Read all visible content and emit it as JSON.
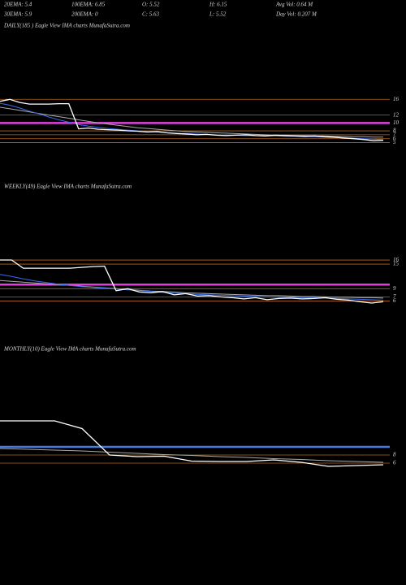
{
  "header": {
    "rows": [
      [
        "20EMA: 5.4",
        "100EMA: 6.85",
        "O: 5.52",
        "H: 6.15",
        "Avg Vol: 0.64  M"
      ],
      [
        "30EMA: 5.9",
        "200EMA: 0",
        "C: 5.63",
        "L: 5.52",
        "Day Vol: 0.207 M"
      ]
    ]
  },
  "chart_data": [
    {
      "type": "line",
      "title": "DAILY(185 ) Eagle  View  IMA charts MunafaSutra.com",
      "ylim": [
        4.5,
        17.5
      ],
      "yticks": [
        16,
        12,
        10,
        8,
        7,
        6,
        5
      ],
      "levels": [
        {
          "value": 10,
          "color": "#e040e0"
        }
      ],
      "series": [
        {
          "color": "#ffffff",
          "values": [
            15.5,
            16,
            15.2,
            14.8,
            14.8,
            14.8,
            14.9,
            14.9,
            8.5,
            8.7,
            8.4,
            8.3,
            8.2,
            8.0,
            7.9,
            7.7,
            7.8,
            7.5,
            7.3,
            7.2,
            7.0,
            7.1,
            6.9,
            6.8,
            6.9,
            7.0,
            6.8,
            6.7,
            6.9,
            6.8,
            6.7,
            6.6,
            6.7,
            6.5,
            6.4,
            6.2,
            6.0,
            5.8,
            5.5,
            5.6
          ]
        },
        {
          "color": "#3a6cf0",
          "values": [
            15,
            14.5,
            13.8,
            13,
            12.3,
            11.5,
            10.8,
            10.2,
            9.6,
            9.2,
            8.9,
            8.6,
            8.4,
            8.2,
            8.0,
            7.8,
            7.7,
            7.5,
            7.4,
            7.3,
            7.2,
            7.1,
            7.0,
            6.9,
            6.9,
            6.8,
            6.8,
            6.7,
            6.7,
            6.6,
            6.6,
            6.5,
            6.5,
            6.4,
            6.3,
            6.2,
            6.1,
            6.0,
            5.9,
            5.8
          ]
        },
        {
          "color": "#aaaaaa",
          "values": [
            14,
            13.6,
            13.2,
            12.8,
            12.4,
            12.0,
            11.6,
            11.2,
            10.8,
            10.4,
            10.0,
            9.7,
            9.4,
            9.1,
            8.8,
            8.6,
            8.4,
            8.2,
            8.0,
            7.8,
            7.7,
            7.6,
            7.5,
            7.4,
            7.3,
            7.2,
            7.1,
            7.0,
            6.9,
            6.9,
            6.8,
            6.8,
            6.7,
            6.7,
            6.6,
            6.6,
            6.5,
            6.5,
            6.4,
            6.4
          ]
        }
      ]
    },
    {
      "type": "line",
      "title": "WEEKLY(49) Eagle  View  IMA charts MunafaSutra.com",
      "ylim": [
        4.5,
        17
      ],
      "yticks": [
        16,
        15,
        9,
        7,
        6
      ],
      "levels": [
        {
          "value": 10,
          "color": "#e040e0"
        }
      ],
      "series": [
        {
          "color": "#ffffff",
          "values": [
            16,
            16,
            14,
            14,
            14,
            14,
            14,
            14.2,
            14.4,
            14.5,
            8.5,
            9.0,
            8.2,
            8.0,
            8.3,
            7.5,
            7.8,
            7.2,
            7.3,
            7.0,
            6.8,
            6.5,
            6.8,
            6.3,
            6.6,
            6.7,
            6.5,
            6.6,
            6.8,
            6.4,
            6.2,
            5.8,
            5.5,
            5.8
          ]
        },
        {
          "color": "#3a6cf0",
          "values": [
            12.5,
            12,
            11.4,
            10.9,
            10.5,
            10.1,
            9.8,
            9.5,
            9.3,
            9.1,
            8.9,
            8.7,
            8.5,
            8.3,
            8.1,
            7.9,
            7.8,
            7.6,
            7.5,
            7.4,
            7.3,
            7.2,
            7.1,
            7.0,
            6.9,
            6.9,
            6.8,
            6.8,
            6.7,
            6.6,
            6.5,
            6.4,
            6.3,
            6.2
          ]
        },
        {
          "color": "#aaaaaa",
          "values": [
            11,
            10.8,
            10.6,
            10.4,
            10.2,
            10.0,
            9.8,
            9.6,
            9.4,
            9.2,
            9.0,
            8.8,
            8.6,
            8.4,
            8.3,
            8.2,
            8.0,
            7.9,
            7.8,
            7.7,
            7.6,
            7.5,
            7.4,
            7.3,
            7.3,
            7.2,
            7.1,
            7.1,
            7.0,
            6.9,
            6.9,
            6.8,
            6.8,
            6.7
          ]
        }
      ]
    },
    {
      "type": "line",
      "title": "MONTHLY(10) Eagle  View  IMA charts MunafaSutra.com",
      "ylim": [
        4,
        18
      ],
      "yticks": [
        8,
        6
      ],
      "levels": [
        {
          "value": 10,
          "color": "#4a7ae0"
        }
      ],
      "series": [
        {
          "color": "#ffffff",
          "values": [
            16.4,
            16.4,
            16.4,
            14.5,
            8.0,
            7.6,
            7.7,
            6.5,
            6.4,
            6.4,
            6.8,
            6.2,
            5.2,
            5.4,
            5.6
          ]
        },
        {
          "color": "#aaaaaa",
          "values": [
            9.6,
            9.4,
            9.2,
            9.0,
            8.7,
            8.4,
            8.1,
            7.9,
            7.6,
            7.4,
            7.1,
            6.9,
            6.6,
            6.4,
            6.2
          ]
        }
      ]
    }
  ]
}
